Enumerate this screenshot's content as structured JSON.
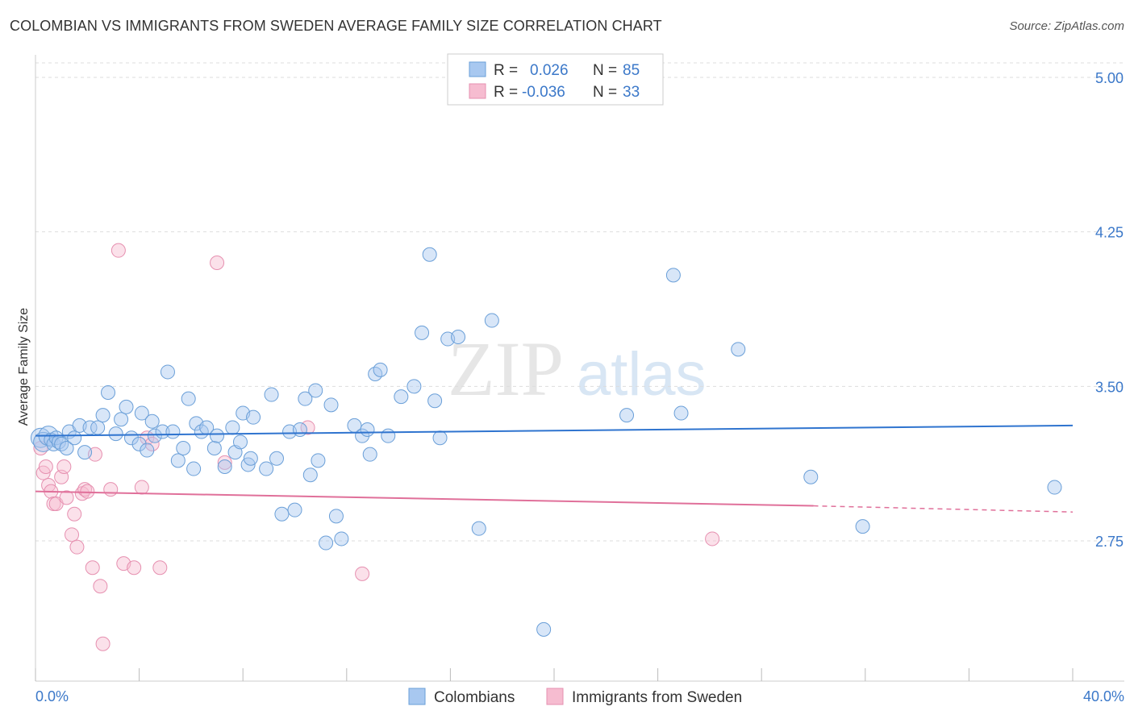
{
  "header": {
    "title": "COLOMBIAN VS IMMIGRANTS FROM SWEDEN AVERAGE FAMILY SIZE CORRELATION CHART",
    "source": "Source: ZipAtlas.com"
  },
  "legend": {
    "colombians": {
      "r_label": "R =",
      "r_value": "0.026",
      "n_label": "N =",
      "n_value": "85"
    },
    "sweden": {
      "r_label": "R =",
      "r_value": "-0.036",
      "n_label": "N =",
      "n_value": "33"
    }
  },
  "watermark": {
    "zip": "ZIP",
    "atlas": "atlas"
  },
  "colors": {
    "blue_fill": "#a8c8f0",
    "blue_stroke": "#6a9fd8",
    "blue_line": "#2f74cf",
    "pink_fill": "#f6bcd0",
    "pink_stroke": "#e690b0",
    "pink_line": "#e0709a",
    "grid": "#dddddd",
    "tick_text": "#3b78c9"
  },
  "chart_data": {
    "type": "scatter",
    "title": "COLOMBIAN VS IMMIGRANTS FROM SWEDEN AVERAGE FAMILY SIZE CORRELATION CHART",
    "xlabel": "",
    "ylabel": "Average Family Size",
    "xlim": [
      0,
      40
    ],
    "ylim": [
      2.0,
      5.1
    ],
    "x_tick_labels": [
      "0.0%",
      "40.0%"
    ],
    "y_ticks": [
      2.75,
      3.5,
      4.25,
      5.0
    ],
    "y_tick_labels": [
      "2.75",
      "3.50",
      "4.25",
      "5.00"
    ],
    "legend_position": "top-center",
    "series": [
      {
        "name": "Colombians",
        "r": 0.026,
        "n": 85,
        "trend": {
          "x": [
            0,
            40
          ],
          "y": [
            3.26,
            3.31
          ]
        },
        "points": [
          [
            0.2,
            3.25
          ],
          [
            0.3,
            3.23
          ],
          [
            0.5,
            3.26
          ],
          [
            0.6,
            3.24
          ],
          [
            0.7,
            3.22
          ],
          [
            0.8,
            3.25
          ],
          [
            0.9,
            3.23
          ],
          [
            1.0,
            3.22
          ],
          [
            1.2,
            3.2
          ],
          [
            1.3,
            3.28
          ],
          [
            1.5,
            3.25
          ],
          [
            1.7,
            3.31
          ],
          [
            1.9,
            3.18
          ],
          [
            2.1,
            3.3
          ],
          [
            2.4,
            3.3
          ],
          [
            2.6,
            3.36
          ],
          [
            2.8,
            3.47
          ],
          [
            3.1,
            3.27
          ],
          [
            3.3,
            3.34
          ],
          [
            3.5,
            3.4
          ],
          [
            3.7,
            3.25
          ],
          [
            4.0,
            3.22
          ],
          [
            4.1,
            3.37
          ],
          [
            4.3,
            3.19
          ],
          [
            4.5,
            3.33
          ],
          [
            4.6,
            3.26
          ],
          [
            4.9,
            3.28
          ],
          [
            5.1,
            3.57
          ],
          [
            5.3,
            3.28
          ],
          [
            5.5,
            3.14
          ],
          [
            5.7,
            3.2
          ],
          [
            5.9,
            3.44
          ],
          [
            6.1,
            3.1
          ],
          [
            6.2,
            3.32
          ],
          [
            6.4,
            3.28
          ],
          [
            6.6,
            3.3
          ],
          [
            6.9,
            3.2
          ],
          [
            7.0,
            3.26
          ],
          [
            7.3,
            3.11
          ],
          [
            7.6,
            3.3
          ],
          [
            7.7,
            3.18
          ],
          [
            7.9,
            3.23
          ],
          [
            8.0,
            3.37
          ],
          [
            8.2,
            3.12
          ],
          [
            8.3,
            3.15
          ],
          [
            8.4,
            3.35
          ],
          [
            8.9,
            3.1
          ],
          [
            9.1,
            3.46
          ],
          [
            9.3,
            3.15
          ],
          [
            9.5,
            2.88
          ],
          [
            9.8,
            3.28
          ],
          [
            10.0,
            2.9
          ],
          [
            10.2,
            3.29
          ],
          [
            10.4,
            3.44
          ],
          [
            10.6,
            3.07
          ],
          [
            10.8,
            3.48
          ],
          [
            10.9,
            3.14
          ],
          [
            11.2,
            2.74
          ],
          [
            11.4,
            3.41
          ],
          [
            11.6,
            2.87
          ],
          [
            11.8,
            2.76
          ],
          [
            12.3,
            3.31
          ],
          [
            12.6,
            3.26
          ],
          [
            12.8,
            3.29
          ],
          [
            12.9,
            3.17
          ],
          [
            13.1,
            3.56
          ],
          [
            13.3,
            3.58
          ],
          [
            13.6,
            3.26
          ],
          [
            14.1,
            3.45
          ],
          [
            14.6,
            3.5
          ],
          [
            14.9,
            3.76
          ],
          [
            15.2,
            4.14
          ],
          [
            15.4,
            3.43
          ],
          [
            15.6,
            3.25
          ],
          [
            15.9,
            3.73
          ],
          [
            16.3,
            3.74
          ],
          [
            17.1,
            2.81
          ],
          [
            17.6,
            3.82
          ],
          [
            19.6,
            2.32
          ],
          [
            22.8,
            3.36
          ],
          [
            24.6,
            4.04
          ],
          [
            24.9,
            3.37
          ],
          [
            27.1,
            3.68
          ],
          [
            29.9,
            3.06
          ],
          [
            31.9,
            2.82
          ],
          [
            39.3,
            3.01
          ]
        ]
      },
      {
        "name": "Immigrants from Sweden",
        "r": -0.036,
        "n": 33,
        "trend": {
          "x": [
            0,
            30
          ],
          "y": [
            2.99,
            2.92
          ]
        },
        "trend_dashed": {
          "x": [
            30,
            40
          ],
          "y": [
            2.92,
            2.89
          ]
        },
        "points": [
          [
            0.2,
            3.2
          ],
          [
            0.3,
            3.08
          ],
          [
            0.4,
            3.11
          ],
          [
            0.5,
            3.02
          ],
          [
            0.6,
            2.99
          ],
          [
            0.7,
            2.93
          ],
          [
            0.8,
            2.93
          ],
          [
            1.0,
            3.06
          ],
          [
            1.1,
            3.11
          ],
          [
            1.2,
            2.96
          ],
          [
            1.4,
            2.78
          ],
          [
            1.5,
            2.88
          ],
          [
            1.6,
            2.72
          ],
          [
            1.8,
            2.98
          ],
          [
            1.9,
            3.0
          ],
          [
            2.0,
            2.99
          ],
          [
            2.2,
            2.62
          ],
          [
            2.3,
            3.17
          ],
          [
            2.5,
            2.53
          ],
          [
            2.6,
            2.25
          ],
          [
            2.9,
            3.0
          ],
          [
            3.2,
            4.16
          ],
          [
            3.4,
            2.64
          ],
          [
            3.8,
            2.62
          ],
          [
            4.1,
            3.01
          ],
          [
            4.3,
            3.25
          ],
          [
            4.5,
            3.22
          ],
          [
            4.8,
            2.62
          ],
          [
            7.0,
            4.1
          ],
          [
            7.3,
            3.13
          ],
          [
            10.5,
            3.3
          ],
          [
            12.6,
            2.59
          ],
          [
            26.1,
            2.76
          ]
        ]
      }
    ]
  },
  "bottom_legend": {
    "colombians_label": "Colombians",
    "sweden_label": "Immigrants from Sweden"
  }
}
